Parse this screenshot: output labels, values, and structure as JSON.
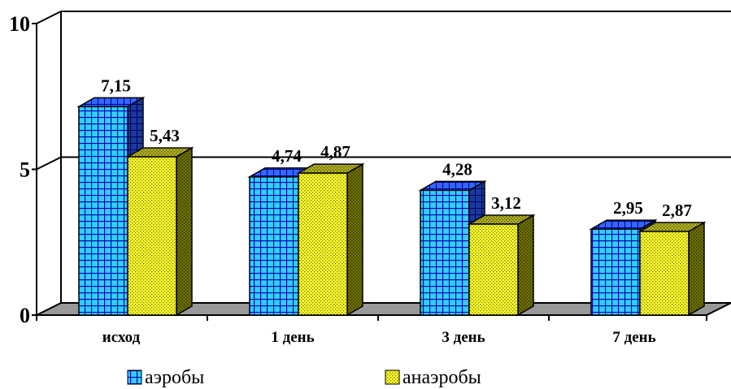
{
  "chart_data": {
    "type": "bar",
    "categories": [
      "исход",
      "1 день",
      "3 день",
      "7 день"
    ],
    "series": [
      {
        "name": "аэробы",
        "values": [
          7.15,
          4.74,
          4.28,
          2.95
        ],
        "labels": [
          "7,15",
          "4,74",
          "4,28",
          "2,95"
        ]
      },
      {
        "name": "анаэробы",
        "values": [
          5.43,
          4.87,
          3.12,
          2.87
        ],
        "labels": [
          "5,43",
          "4,87",
          "3,12",
          "2,87"
        ]
      }
    ],
    "yticks": [
      "0",
      "5",
      "10"
    ],
    "ylim": [
      0,
      10
    ],
    "grid": true,
    "legend": "bottom",
    "colors": {
      "aero_face": "#33ccff",
      "aero_grid": "#0000aa",
      "aero_top": "#3366ff",
      "aero_side": "#1a3a9a",
      "anaero_face": "#ffff33",
      "anaero_dots": "#808000",
      "anaero_top": "#b3b326",
      "anaero_side": "#707000",
      "floor": "#999999"
    }
  }
}
